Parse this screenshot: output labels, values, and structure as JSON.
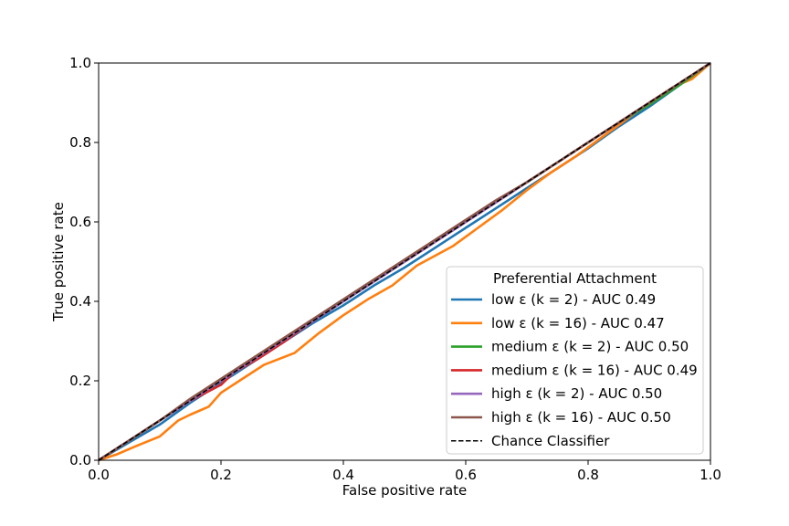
{
  "chart_data": {
    "type": "line",
    "title": "",
    "xlabel": "False positive rate",
    "ylabel": "True positive rate",
    "xlim": [
      0,
      1
    ],
    "ylim": [
      0,
      1
    ],
    "xticks": [
      "0.0",
      "0.2",
      "0.4",
      "0.6",
      "0.8",
      "1.0"
    ],
    "yticks": [
      "0.0",
      "0.2",
      "0.4",
      "0.6",
      "0.8",
      "1.0"
    ],
    "grid": false,
    "legend": {
      "title": "Preferential Attachment",
      "placement": "lower-right"
    },
    "series": [
      {
        "name": "low ε (k = 2) - AUC 0.49",
        "color": "#1f77b4",
        "x": [
          0,
          0.05,
          0.1,
          0.15,
          0.2,
          0.25,
          0.3,
          0.35,
          0.4,
          0.45,
          0.5,
          0.55,
          0.6,
          0.65,
          0.7,
          0.75,
          0.8,
          0.85,
          0.9,
          0.95,
          1.0
        ],
        "y": [
          0,
          0.045,
          0.09,
          0.145,
          0.195,
          0.245,
          0.295,
          0.345,
          0.39,
          0.44,
          0.485,
          0.535,
          0.585,
          0.635,
          0.685,
          0.735,
          0.785,
          0.84,
          0.89,
          0.945,
          1.0
        ]
      },
      {
        "name": "low ε (k = 16) - AUC 0.47",
        "color": "#ff7f0e",
        "x": [
          0,
          0.03,
          0.06,
          0.1,
          0.13,
          0.15,
          0.18,
          0.2,
          0.23,
          0.27,
          0.32,
          0.36,
          0.4,
          0.44,
          0.48,
          0.52,
          0.55,
          0.58,
          0.62,
          0.66,
          0.7,
          0.74,
          0.78,
          0.82,
          0.86,
          0.9,
          0.94,
          0.97,
          1.0
        ],
        "y": [
          0,
          0.015,
          0.035,
          0.06,
          0.1,
          0.115,
          0.135,
          0.17,
          0.2,
          0.24,
          0.27,
          0.32,
          0.365,
          0.405,
          0.44,
          0.49,
          0.515,
          0.54,
          0.585,
          0.63,
          0.68,
          0.725,
          0.765,
          0.81,
          0.855,
          0.9,
          0.94,
          0.96,
          1.0
        ]
      },
      {
        "name": "medium ε (k = 2) - AUC 0.50",
        "color": "#2ca02c",
        "x": [
          0,
          0.05,
          0.1,
          0.15,
          0.2,
          0.25,
          0.3,
          0.35,
          0.4,
          0.45,
          0.5,
          0.55,
          0.6,
          0.65,
          0.7,
          0.75,
          0.8,
          0.85,
          0.9,
          0.95,
          1.0
        ],
        "y": [
          0,
          0.05,
          0.1,
          0.15,
          0.2,
          0.25,
          0.3,
          0.35,
          0.4,
          0.45,
          0.5,
          0.55,
          0.6,
          0.65,
          0.7,
          0.75,
          0.8,
          0.85,
          0.895,
          0.945,
          1.0
        ]
      },
      {
        "name": "medium ε (k = 16) - AUC 0.49",
        "color": "#d62728",
        "x": [
          0,
          0.05,
          0.1,
          0.15,
          0.2,
          0.22,
          0.26,
          0.3,
          0.35,
          0.4,
          0.45,
          0.5,
          0.55,
          0.6,
          0.65,
          0.7,
          0.75,
          0.8,
          0.85,
          0.9,
          0.95,
          1.0
        ],
        "y": [
          0,
          0.05,
          0.1,
          0.15,
          0.19,
          0.22,
          0.255,
          0.295,
          0.35,
          0.4,
          0.45,
          0.5,
          0.55,
          0.6,
          0.65,
          0.7,
          0.75,
          0.8,
          0.85,
          0.9,
          0.95,
          1.0
        ]
      },
      {
        "name": "high ε (k = 2) - AUC 0.50",
        "color": "#9467bd",
        "x": [
          0,
          0.05,
          0.1,
          0.15,
          0.2,
          0.25,
          0.3,
          0.35,
          0.4,
          0.45,
          0.5,
          0.55,
          0.6,
          0.65,
          0.7,
          0.75,
          0.8,
          0.85,
          0.9,
          0.95,
          1.0
        ],
        "y": [
          0,
          0.05,
          0.1,
          0.15,
          0.2,
          0.25,
          0.3,
          0.35,
          0.4,
          0.45,
          0.5,
          0.55,
          0.6,
          0.65,
          0.7,
          0.75,
          0.8,
          0.85,
          0.9,
          0.95,
          1.0
        ]
      },
      {
        "name": "high ε (k = 16) - AUC 0.50",
        "color": "#8c564b",
        "x": [
          0,
          0.05,
          0.1,
          0.15,
          0.2,
          0.25,
          0.3,
          0.35,
          0.4,
          0.45,
          0.5,
          0.55,
          0.6,
          0.65,
          0.7,
          0.75,
          0.8,
          0.85,
          0.9,
          0.95,
          1.0
        ],
        "y": [
          0,
          0.05,
          0.1,
          0.155,
          0.205,
          0.255,
          0.305,
          0.355,
          0.405,
          0.455,
          0.505,
          0.555,
          0.605,
          0.655,
          0.7,
          0.75,
          0.8,
          0.85,
          0.9,
          0.95,
          1.0
        ]
      },
      {
        "name": "Chance Classifier",
        "color": "#000000",
        "dashed": true,
        "x": [
          0,
          1
        ],
        "y": [
          0,
          1
        ]
      }
    ]
  }
}
